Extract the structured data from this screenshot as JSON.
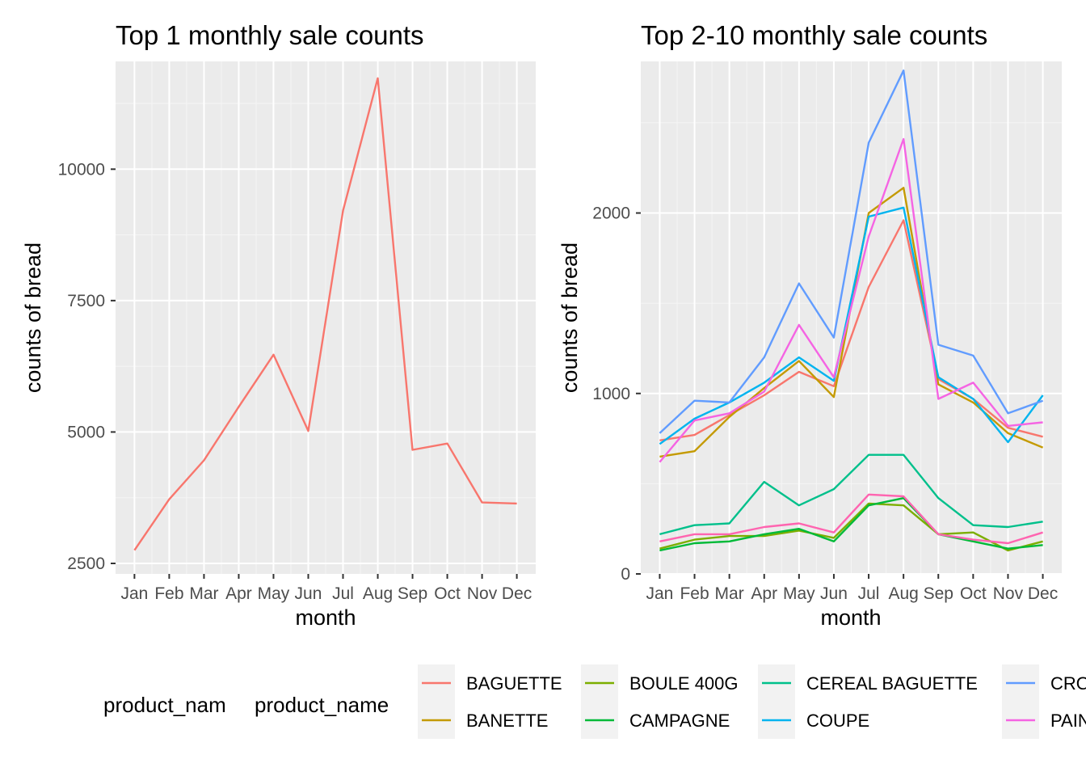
{
  "chart_data": [
    {
      "type": "line",
      "title": "Top 1 monthly sale counts",
      "xlabel": "month",
      "ylabel": "counts of bread",
      "categories": [
        "Jan",
        "Feb",
        "Mar",
        "Apr",
        "May",
        "Jun",
        "Jul",
        "Aug",
        "Sep",
        "Oct",
        "Nov",
        "Dec"
      ],
      "ylim": [
        2300,
        12050
      ],
      "yticks": [
        2500,
        5000,
        7500,
        10000
      ],
      "ytick_labels": [
        "2500",
        "5000",
        "7500",
        "10000"
      ],
      "grid": true,
      "series": [
        {
          "name": "BAGUETTE",
          "color": "#F8766D",
          "values": [
            2750,
            3720,
            4460,
            5480,
            6470,
            5020,
            9210,
            11730,
            4660,
            4780,
            3660,
            3640
          ]
        }
      ]
    },
    {
      "type": "line",
      "title": "Top 2-10 monthly sale counts",
      "xlabel": "month",
      "ylabel": "counts of bread",
      "categories": [
        "Jan",
        "Feb",
        "Mar",
        "Apr",
        "May",
        "Jun",
        "Jul",
        "Aug",
        "Sep",
        "Oct",
        "Nov",
        "Dec"
      ],
      "ylim": [
        0,
        2840
      ],
      "yticks": [
        0,
        1000,
        2000
      ],
      "ytick_labels": [
        "0",
        "1000",
        "2000"
      ],
      "grid": true,
      "series": [
        {
          "name": "BAGUETTE",
          "color": "#F8766D",
          "values": [
            740,
            770,
            880,
            990,
            1120,
            1040,
            1590,
            1960,
            1080,
            970,
            810,
            760
          ]
        },
        {
          "name": "BANETTE",
          "color": "#C49A00",
          "values": [
            650,
            680,
            870,
            1030,
            1180,
            980,
            2000,
            2140,
            1050,
            950,
            780,
            700
          ]
        },
        {
          "name": "BOULE 400G",
          "color": "#7CAE00",
          "values": [
            140,
            190,
            210,
            210,
            240,
            200,
            390,
            380,
            220,
            230,
            130,
            180
          ]
        },
        {
          "name": "CAMPAGNE",
          "color": "#00BA38",
          "values": [
            130,
            170,
            180,
            220,
            250,
            180,
            380,
            420,
            220,
            180,
            140,
            160
          ]
        },
        {
          "name": "CEREAL BAGUETTE",
          "color": "#00C08B",
          "values": [
            220,
            270,
            280,
            510,
            380,
            470,
            660,
            660,
            420,
            270,
            260,
            290
          ]
        },
        {
          "name": "COUPE",
          "color": "#00B4EF",
          "values": [
            720,
            860,
            950,
            1060,
            1200,
            1070,
            1980,
            2030,
            1090,
            970,
            730,
            990
          ]
        },
        {
          "name": "CROISSANT",
          "color": "#619CFF",
          "values": [
            780,
            960,
            950,
            1200,
            1610,
            1310,
            2390,
            2790,
            1270,
            1210,
            890,
            960
          ]
        },
        {
          "name": "PAIN AU CHOCOLAT",
          "color": "#F564E3",
          "values": [
            620,
            850,
            890,
            1010,
            1380,
            1090,
            1870,
            2410,
            970,
            1060,
            820,
            840
          ]
        },
        {
          "name": "",
          "color": "#FF64B0",
          "values": [
            180,
            220,
            220,
            260,
            280,
            230,
            440,
            430,
            220,
            190,
            170,
            230
          ]
        }
      ]
    }
  ],
  "legend": {
    "title_left": "product_nam",
    "title_right": "product_name",
    "items": [
      {
        "label": "BAGUETTE",
        "color": "#F8766D"
      },
      {
        "label": "BANETTE",
        "color": "#C49A00"
      },
      {
        "label": "BOULE 400G",
        "color": "#7CAE00"
      },
      {
        "label": "CAMPAGNE",
        "color": "#00BA38"
      },
      {
        "label": "CEREAL BAGUETTE",
        "color": "#00C08B"
      },
      {
        "label": "COUPE",
        "color": "#00B4EF"
      },
      {
        "label": "CRO",
        "color": "#619CFF"
      },
      {
        "label": "PAIN",
        "color": "#F564E3"
      }
    ]
  }
}
